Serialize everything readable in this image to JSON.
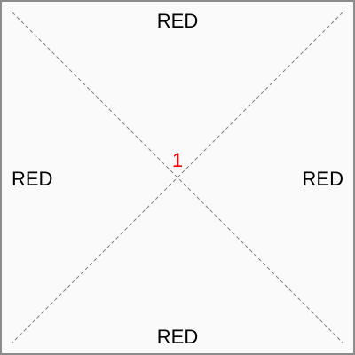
{
  "labels": {
    "top": "RED",
    "left": "RED",
    "right": "RED",
    "bottom": "RED"
  },
  "center": {
    "value": "1",
    "color": "#ff0000"
  },
  "colors": {
    "background": "#fafafa",
    "border": "#8c8c8c",
    "diagonal_line": "#808080",
    "label_text": "#000000"
  }
}
